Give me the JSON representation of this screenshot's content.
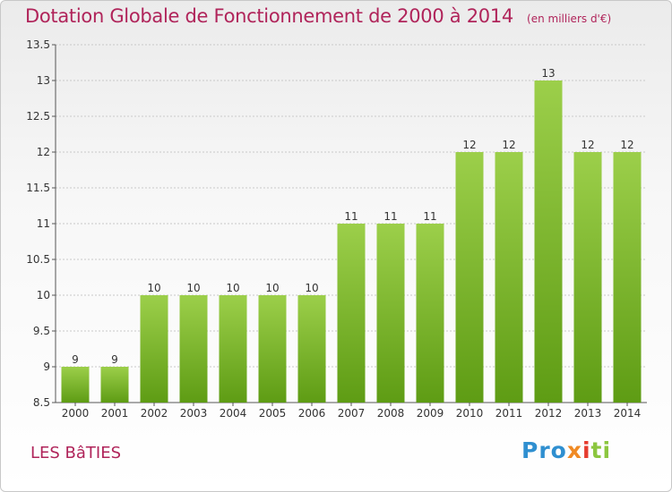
{
  "header": {
    "title": "Dotation Globale de Fonctionnement de 2000 à 2014",
    "subtitle": "(en milliers d'€)"
  },
  "footer": {
    "commune": "LES BâTIES",
    "logo_parts": [
      "Pro",
      "x",
      "i",
      "ti"
    ]
  },
  "colors": {
    "title": "#b0245a",
    "bar_top": "#9ccf4a",
    "bar_bottom": "#5e9c14",
    "grid": "#c9c9c9"
  },
  "chart_data": {
    "type": "bar",
    "title": "Dotation Globale de Fonctionnement de 2000 à 2014",
    "subtitle": "(en milliers d'€)",
    "xlabel": "",
    "ylabel": "",
    "categories": [
      "2000",
      "2001",
      "2002",
      "2003",
      "2004",
      "2005",
      "2006",
      "2007",
      "2008",
      "2009",
      "2010",
      "2011",
      "2012",
      "2013",
      "2014"
    ],
    "values": [
      9,
      9,
      10,
      10,
      10,
      10,
      10,
      11,
      11,
      11,
      12,
      12,
      13,
      12,
      12
    ],
    "data_labels": [
      "9",
      "9",
      "10",
      "10",
      "10",
      "10",
      "10",
      "11",
      "11",
      "11",
      "12",
      "12",
      "13",
      "12",
      "12"
    ],
    "ylim": [
      8.5,
      13.5
    ],
    "yticks": [
      "8.5",
      "9",
      "9.5",
      "10",
      "10.5",
      "11",
      "11.5",
      "12",
      "12.5",
      "13",
      "13.5"
    ],
    "grid": true,
    "legend": "none"
  }
}
